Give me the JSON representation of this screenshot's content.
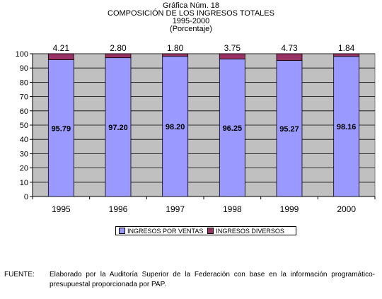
{
  "header": {
    "line1": "Gráfica Núm. 18",
    "line2": "COMPOSICIÓN DE LOS INGRESOS TOTALES",
    "line3": "1995-2000",
    "line4": "(Porcentaje)"
  },
  "chart_data": {
    "type": "bar",
    "stacked": true,
    "categories": [
      "1995",
      "1996",
      "1997",
      "1998",
      "1999",
      "2000"
    ],
    "series": [
      {
        "name": "INGRESOS POR VENTAS",
        "color": "#9999ff",
        "values": [
          95.79,
          97.2,
          98.2,
          96.25,
          95.27,
          98.16
        ],
        "labels": [
          "95.79",
          "97.20",
          "98.20",
          "96.25",
          "95.27",
          "98.16"
        ]
      },
      {
        "name": "INGRESOS DIVERSOS",
        "color": "#993366",
        "values": [
          4.21,
          2.8,
          1.8,
          3.75,
          4.73,
          1.84
        ],
        "labels": [
          "4.21",
          "2.80",
          "1.80",
          "3.75",
          "4.73",
          "1.84"
        ]
      }
    ],
    "ylim": [
      0,
      100
    ],
    "yticks": [
      "0",
      "10",
      "20",
      "30",
      "40",
      "50",
      "60",
      "70",
      "80",
      "90",
      "100"
    ],
    "grid": true,
    "plot_background": "#c0c0c0",
    "legend_position": "bottom"
  },
  "legend": {
    "item1": "INGRESOS POR VENTAS",
    "item2": "INGRESOS DIVERSOS"
  },
  "source": {
    "label": "FUENTE:",
    "text": "Elaborado por la Auditoría Superior de la Federación con base en la información programático-presupuestal proporcionada por PAP."
  }
}
